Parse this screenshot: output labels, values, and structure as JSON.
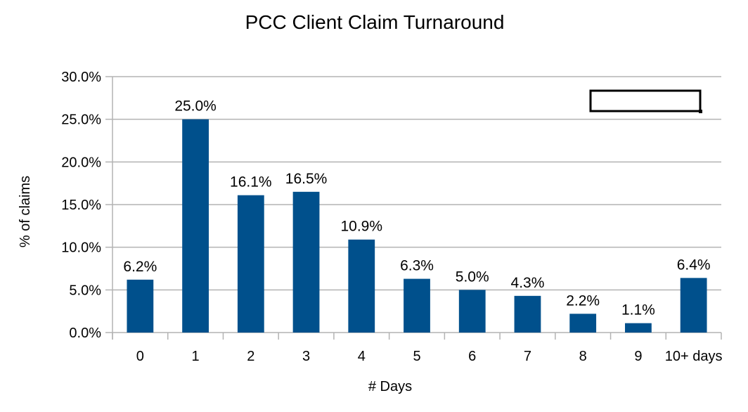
{
  "chart_data": {
    "type": "bar",
    "title": "PCC Client Claim Turnaround",
    "xlabel": "# Days",
    "ylabel": "% of claims",
    "categories": [
      "0",
      "1",
      "2",
      "3",
      "4",
      "5",
      "6",
      "7",
      "8",
      "9",
      "10+ days"
    ],
    "values": [
      6.2,
      25.0,
      16.1,
      16.5,
      10.9,
      6.3,
      5.0,
      4.3,
      2.2,
      1.1,
      6.4
    ],
    "data_labels": [
      "6.2%",
      "25.0%",
      "16.1%",
      "16.5%",
      "10.9%",
      "6.3%",
      "5.0%",
      "4.3%",
      "2.2%",
      "1.1%",
      "6.4%"
    ],
    "yticks": [
      0,
      5,
      10,
      15,
      20,
      25,
      30
    ],
    "ytick_labels": [
      "0.0%",
      "5.0%",
      "10.0%",
      "15.0%",
      "20.0%",
      "25.0%",
      "30.0%"
    ],
    "ylim": [
      0,
      30
    ],
    "grid": true,
    "legend": "top-right (empty box)",
    "colors": {
      "bar": "#00508c",
      "grid": "#b3b3b3",
      "axis": "#b3b3b3"
    }
  }
}
